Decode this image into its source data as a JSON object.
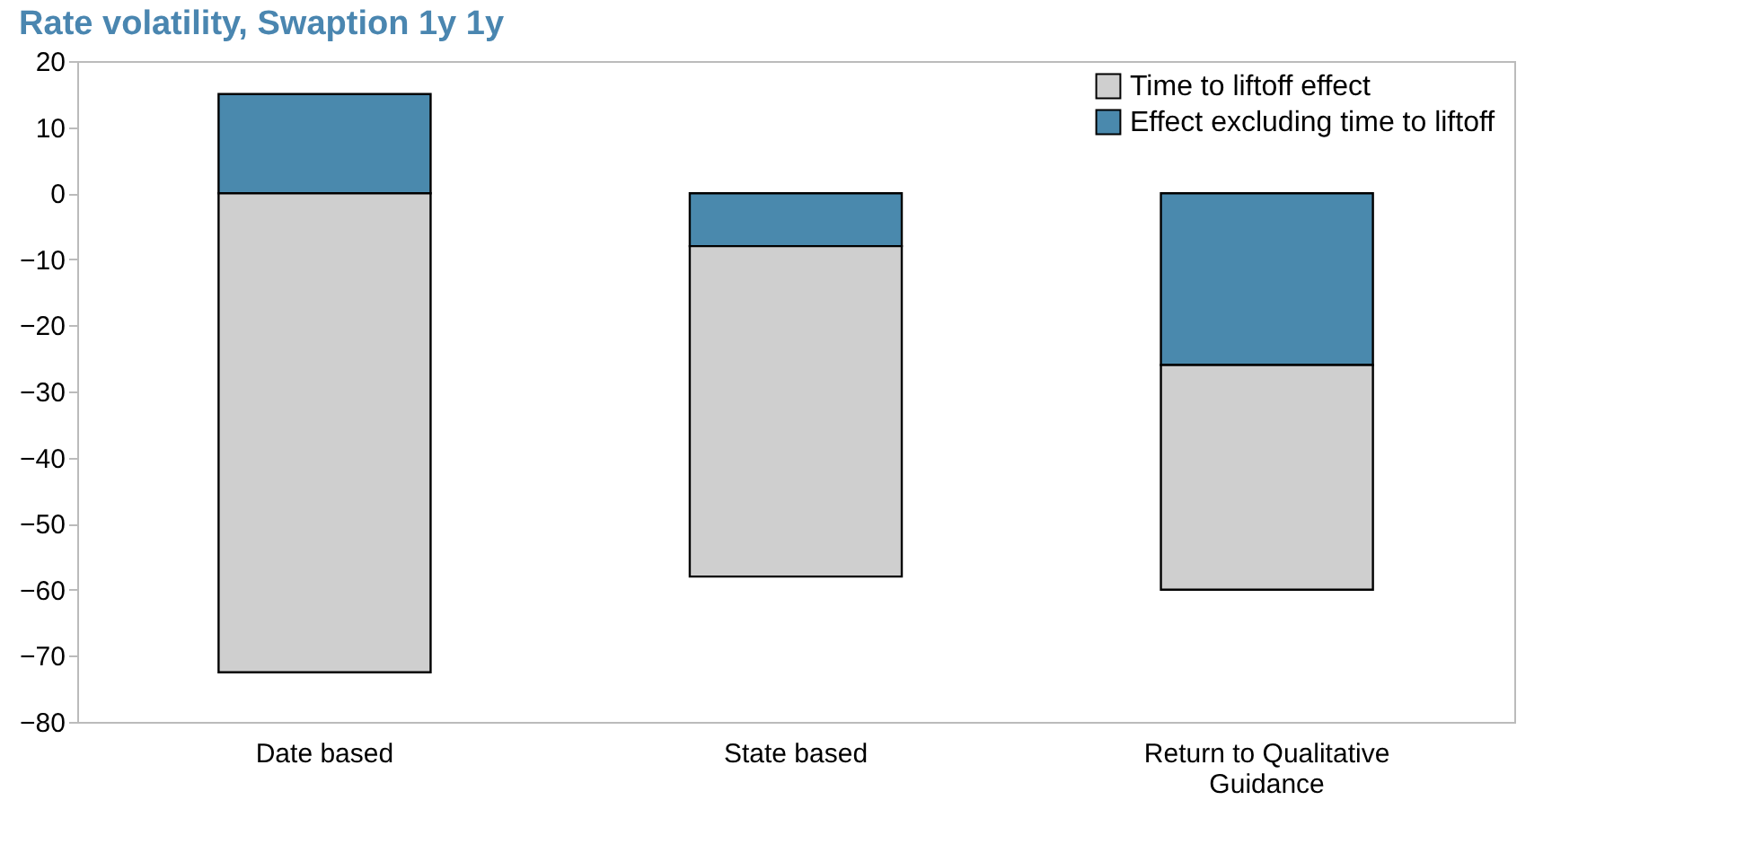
{
  "chart_data": {
    "type": "bar",
    "title": "Rate volatility, Swaption 1y 1y",
    "categories": [
      "Date based",
      "State based",
      "Return to Qualitative Guidance"
    ],
    "stacked": true,
    "series": [
      {
        "name": "Effect excluding  time to liftoff",
        "color": "#4a89ad",
        "values": [
          15,
          -8,
          -26
        ]
      },
      {
        "name": "Time to liftoff effect",
        "color": "#cfcfcf",
        "values": [
          -72.5,
          -50,
          -34
        ]
      }
    ],
    "ylim": [
      -80,
      20
    ],
    "yticks": [
      -80,
      -70,
      -60,
      -50,
      -40,
      -30,
      -20,
      -10,
      0,
      10,
      20
    ],
    "grid": false,
    "legend": "top right"
  }
}
